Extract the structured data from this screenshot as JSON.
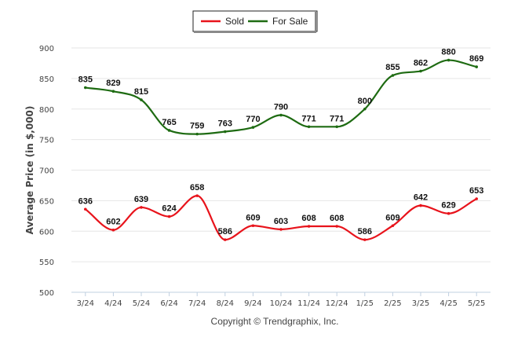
{
  "chart_data": {
    "type": "line",
    "ylabel": "Average Price (in $,000)",
    "xlabel": "",
    "ylim": [
      500,
      900
    ],
    "yticks": [
      500,
      550,
      600,
      650,
      700,
      750,
      800,
      850,
      900
    ],
    "grid": true,
    "legend_position": "top-center",
    "categories": [
      "3/24",
      "4/24",
      "5/24",
      "6/24",
      "7/24",
      "8/24",
      "9/24",
      "10/24",
      "11/24",
      "12/24",
      "1/25",
      "2/25",
      "3/25",
      "4/25",
      "5/25"
    ],
    "series": [
      {
        "name": "Sold",
        "color": "#e8131b",
        "values": [
          636,
          602,
          639,
          624,
          658,
          586,
          609,
          603,
          608,
          608,
          586,
          609,
          642,
          629,
          653
        ]
      },
      {
        "name": "For Sale",
        "color": "#1e6b12",
        "values": [
          835,
          829,
          815,
          765,
          759,
          763,
          770,
          790,
          771,
          771,
          800,
          855,
          862,
          880,
          869
        ]
      }
    ]
  },
  "credit": "Copyright © Trendgraphix, Inc."
}
